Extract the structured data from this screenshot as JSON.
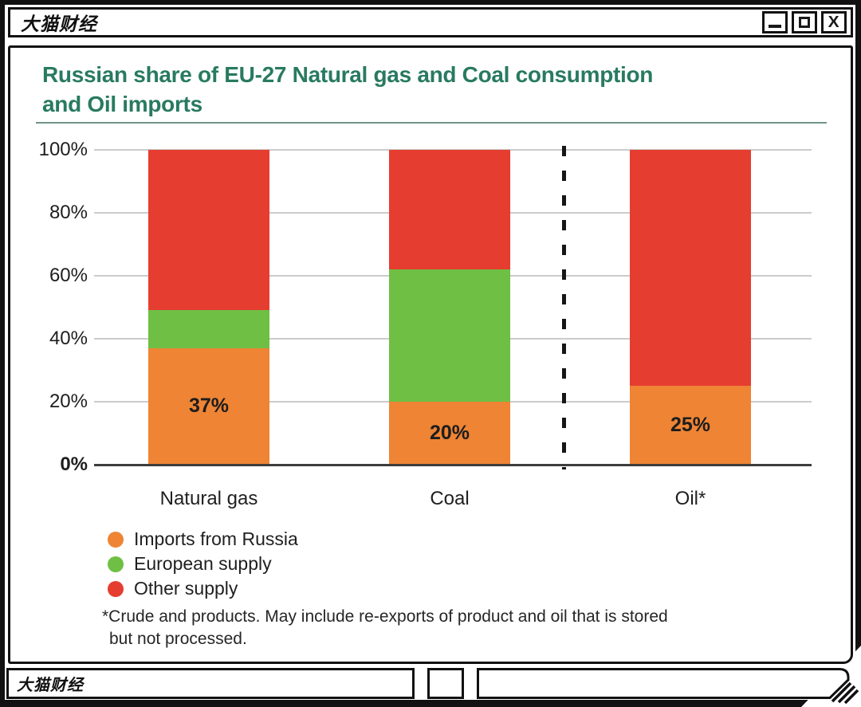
{
  "window": {
    "title": "大猫财经",
    "controls": [
      {
        "name": "minimize-button"
      },
      {
        "name": "maximize-button"
      },
      {
        "name": "close-button",
        "glyph": "X"
      }
    ],
    "statusbar": {
      "left_text": "大猫财经"
    }
  },
  "chart": {
    "title_line1": "Russian share of EU-27 Natural gas and Coal consumption",
    "title_line2": "and Oil imports",
    "footnote_line1": "*Crude and products. May include re-exports of product and oil that is stored",
    "footnote_line2": "but not processed."
  },
  "chart_data": {
    "type": "bar",
    "stacked": true,
    "title": "Russian share of EU-27 Natural gas and Coal consumption and Oil imports",
    "categories": [
      "Natural gas",
      "Coal",
      "Oil*"
    ],
    "series": [
      {
        "name": "Imports from Russia",
        "color": "#ee8434",
        "values": [
          37,
          20,
          25
        ]
      },
      {
        "name": "European supply",
        "color": "#6fbf44",
        "values": [
          12,
          42,
          0
        ]
      },
      {
        "name": "Other supply",
        "color": "#e63d31",
        "values": [
          51,
          38,
          75
        ]
      }
    ],
    "bar_labels": [
      "37%",
      "20%",
      "25%"
    ],
    "y_ticks": [
      {
        "label": "100%",
        "value": 100
      },
      {
        "label": "80%",
        "value": 80
      },
      {
        "label": "60%",
        "value": 60
      },
      {
        "label": "40%",
        "value": 40
      },
      {
        "label": "20%",
        "value": 20
      },
      {
        "label": "0%",
        "value": 0
      }
    ],
    "ylim": [
      0,
      100
    ],
    "grid": true,
    "legend_position": "bottom-left",
    "divider": {
      "type": "dashed-vertical",
      "between": [
        "Coal",
        "Oil*"
      ]
    }
  }
}
